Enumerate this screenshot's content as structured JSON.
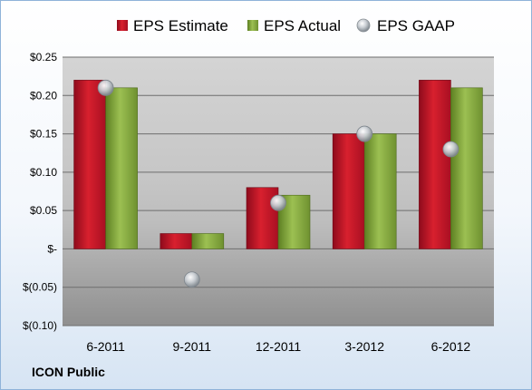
{
  "chart_data": {
    "type": "bar",
    "categories": [
      "6-2011",
      "9-2011",
      "12-2011",
      "3-2012",
      "6-2012"
    ],
    "series": [
      {
        "name": "EPS Estimate",
        "kind": "bar",
        "color": "#c8102e",
        "values": [
          0.22,
          0.02,
          0.08,
          0.15,
          0.22
        ]
      },
      {
        "name": "EPS Actual",
        "kind": "bar",
        "color": "#8db043",
        "values": [
          0.21,
          0.02,
          0.07,
          0.15,
          0.21
        ]
      },
      {
        "name": "EPS GAAP",
        "kind": "marker",
        "color": "#b8bfc6",
        "values": [
          0.21,
          -0.04,
          0.06,
          0.15,
          0.13
        ]
      }
    ],
    "yticks": [
      {
        "value": 0.25,
        "label": "$0.25"
      },
      {
        "value": 0.2,
        "label": "$0.20"
      },
      {
        "value": 0.15,
        "label": "$0.15"
      },
      {
        "value": 0.1,
        "label": "$0.10"
      },
      {
        "value": 0.05,
        "label": "$0.05"
      },
      {
        "value": 0.0,
        "label": "$-"
      },
      {
        "value": -0.05,
        "label": "$(0.05)"
      },
      {
        "value": -0.1,
        "label": "$(0.10)"
      }
    ],
    "ylim": [
      -0.1,
      0.25
    ],
    "grid": true,
    "legend_position": "top",
    "footer": "ICON Public"
  }
}
